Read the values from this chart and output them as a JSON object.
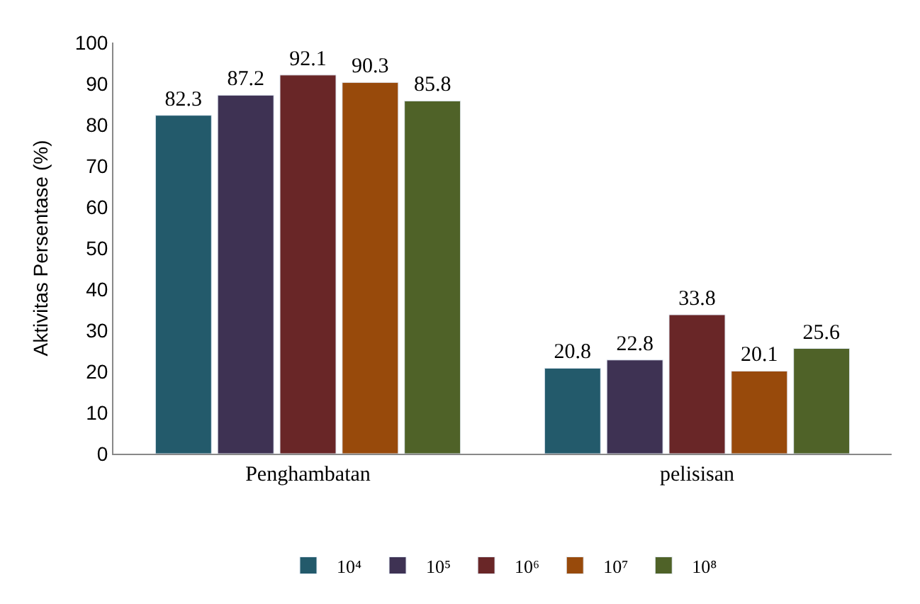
{
  "chart_data": {
    "type": "bar",
    "ylabel": "Aktivitas Persentase (%)",
    "categories": [
      "Penghambatan",
      "pelisisan"
    ],
    "series": [
      {
        "name": "10⁴",
        "color": "#235a6b",
        "values": [
          82.3,
          20.8
        ]
      },
      {
        "name": "10⁵",
        "color": "#3e3253",
        "values": [
          87.2,
          22.8
        ]
      },
      {
        "name": "10⁶",
        "color": "#692627",
        "values": [
          92.1,
          33.8
        ]
      },
      {
        "name": "10⁷",
        "color": "#984a0b",
        "values": [
          90.3,
          20.1
        ]
      },
      {
        "name": "10⁸",
        "color": "#4f6228",
        "values": [
          85.8,
          25.6
        ]
      }
    ],
    "ylim": [
      0,
      100
    ],
    "yticks": [
      0,
      10,
      20,
      30,
      40,
      50,
      60,
      70,
      80,
      90,
      100
    ],
    "data_labels": true,
    "legend": "bottom"
  }
}
